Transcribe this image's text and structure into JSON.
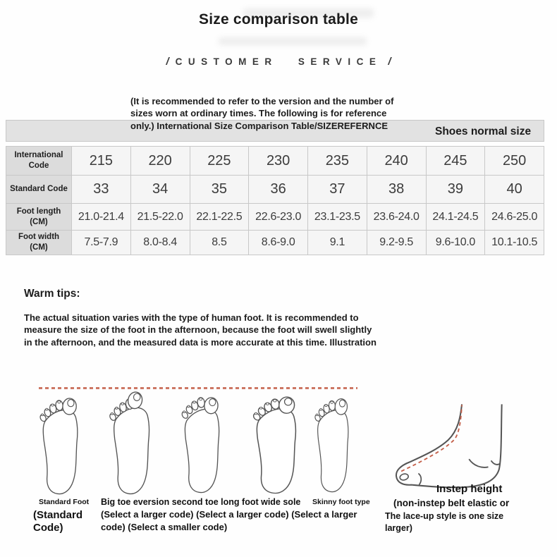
{
  "header": {
    "title": "Size comparison table",
    "banner_text": "CUSTOMER SERVICE",
    "slash": "/"
  },
  "intro": {
    "lines": [
      "(It is recommended to refer to the version and the number of",
      "sizes worn at ordinary times. The following is for reference",
      "only.) International Size Comparison Table/SIZEREFERNCE"
    ],
    "shoes_label": "Shoes normal size"
  },
  "size_table": {
    "rows": [
      {
        "label": "International Code",
        "values": [
          "215",
          "220",
          "225",
          "230",
          "235",
          "240",
          "245",
          "250"
        ]
      },
      {
        "label": "Standard Code",
        "values": [
          "33",
          "34",
          "35",
          "36",
          "37",
          "38",
          "39",
          "40"
        ]
      },
      {
        "label": "Foot length (CM)",
        "values": [
          "21.0-21.4",
          "21.5-22.0",
          "22.1-22.5",
          "22.6-23.0",
          "23.1-23.5",
          "23.6-24.0",
          "24.1-24.5",
          "24.6-25.0"
        ]
      },
      {
        "label": "Foot width (CM)",
        "values": [
          "7.5-7.9",
          "8.0-8.4",
          "8.5",
          "8.6-9.0",
          "9.1",
          "9.2-9.5",
          "9.6-10.0",
          "10.1-10.5"
        ]
      }
    ]
  },
  "warm_tips": {
    "heading": "Warm tips:",
    "lines": [
      "The actual situation varies with the type of human foot. It is recommended to",
      "measure the size of the foot in the afternoon, because the foot will swell slightly",
      "in the afternoon, and the measured data is more accurate at this time. Illustration"
    ]
  },
  "feet_captions": {
    "standard": {
      "title": "Standard Foot",
      "lines": [
        "(Standard",
        "Code)"
      ]
    },
    "variants": {
      "title": "Big toe eversion second toe long foot wide sole",
      "lines": [
        "(Select a larger code) (Select a larger code) (Select a larger",
        "code) (Select a smaller code)"
      ]
    },
    "skinny": {
      "title": "Skinny foot type"
    },
    "instep": {
      "title": "Instep height",
      "lines": [
        "(non-instep belt elastic or",
        "The lace-up style is one size",
        "larger)"
      ]
    }
  },
  "colors": {
    "accent-red": "#c45f49",
    "band-gray": "#e2e2e2",
    "label-bg": "#dcdcdc",
    "cell-bg": "#f5f5f5",
    "border-gray": "#c8c8c8"
  }
}
